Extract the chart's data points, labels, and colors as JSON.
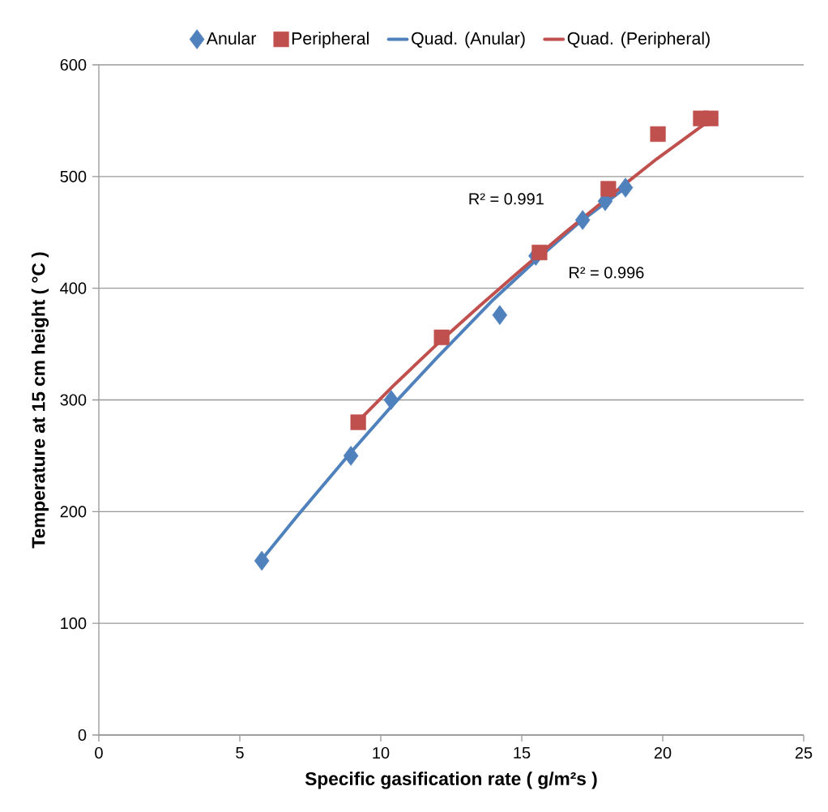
{
  "chart_data": {
    "type": "scatter",
    "xlabel": "Specific gasification rate ( g/m²s )",
    "ylabel": "Temperature at 15 cm height ( °C )",
    "xlim": [
      0,
      25
    ],
    "xticks": [
      0,
      5,
      10,
      15,
      20,
      25
    ],
    "ylim": [
      0,
      600
    ],
    "yticks": [
      0,
      100,
      200,
      300,
      400,
      500,
      600
    ],
    "grid": "y",
    "legend": "top",
    "series": [
      {
        "name": "Anular",
        "marker": "diamond",
        "color": "#4f81bd",
        "x": [
          5.78,
          8.94,
          10.37,
          14.22,
          15.5,
          17.16,
          17.96,
          18.68
        ],
        "values": [
          156,
          250,
          300,
          376,
          429,
          461,
          478,
          490
        ]
      },
      {
        "name": "Peripheral",
        "marker": "square",
        "color": "#c0504d",
        "x": [
          9.2,
          12.16,
          15.63,
          18.07,
          19.83,
          21.35,
          21.7
        ],
        "values": [
          280,
          356,
          432,
          489,
          538,
          552,
          552
        ]
      },
      {
        "name": "Quad. (Anular)",
        "type": "line",
        "marker": "none",
        "color": "#4f81bd",
        "x": [
          5.78,
          7,
          8.94,
          10.37,
          12,
          14,
          15.5,
          17,
          18.68
        ],
        "values": [
          157,
          195,
          253,
          294,
          338,
          390,
          425,
          458,
          490
        ]
      },
      {
        "name": "Quad. (Peripheral)",
        "type": "line",
        "marker": "none",
        "color": "#c0504d",
        "x": [
          9.2,
          10.5,
          12,
          13.5,
          15,
          16.5,
          18,
          19.8,
          21.7
        ],
        "values": [
          281,
          314,
          350,
          384,
          417,
          449,
          480,
          516,
          551
        ]
      }
    ],
    "annotations": [
      "R² = 0.991",
      "R² = 0.996"
    ]
  }
}
